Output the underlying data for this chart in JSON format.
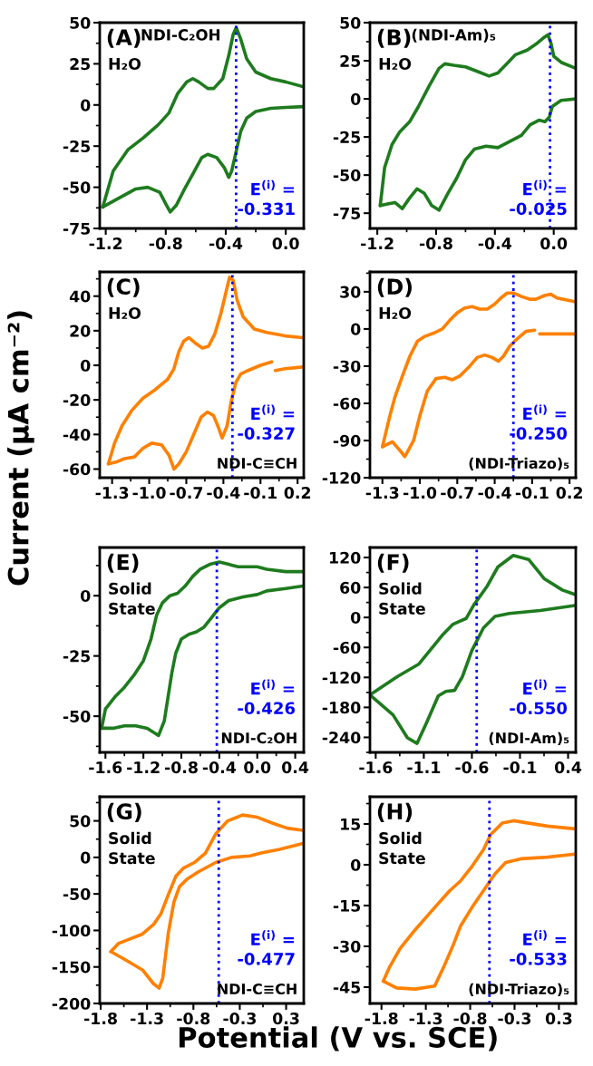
{
  "chart_data": [
    {
      "type": "line",
      "xlim": [
        -1.24,
        0.12
      ],
      "ylim": [
        -75,
        50
      ],
      "xticks": [
        -1.2,
        -0.8,
        -0.4,
        {
          "value": 0.0,
          "label": "0.0"
        }
      ],
      "yticks": [
        -75,
        -50,
        -25,
        0,
        25,
        50
      ],
      "series": [
        {
          "color": "#1e7b1e",
          "x": [
            -1.22,
            -1.15,
            -1.05,
            -0.95,
            -0.85,
            -0.78,
            -0.72,
            -0.66,
            -0.62,
            -0.58,
            -0.52,
            -0.48,
            -0.42,
            -0.38,
            -0.35,
            -0.33,
            -0.3,
            -0.26,
            -0.2,
            -0.1,
            0.0,
            0.12
          ],
          "values": [
            -62,
            -40,
            -27,
            -20,
            -12,
            -5,
            7,
            14,
            16,
            14,
            10,
            10,
            16,
            30,
            43,
            47,
            40,
            28,
            20,
            16,
            14,
            11
          ]
        },
        {
          "color": "#1e7b1e",
          "x": [
            0.12,
            0.0,
            -0.1,
            -0.2,
            -0.26,
            -0.3,
            -0.33,
            -0.36,
            -0.38,
            -0.41,
            -0.46,
            -0.52,
            -0.56,
            -0.62,
            -0.68,
            -0.73,
            -0.77,
            -0.8,
            -0.84,
            -0.92,
            -1.0,
            -1.08,
            -1.16,
            -1.22
          ],
          "values": [
            -1,
            -1.5,
            -2,
            -4,
            -8,
            -16,
            -28,
            -40,
            -44,
            -38,
            -32,
            -30,
            -32,
            -42,
            -52,
            -61,
            -65,
            -60,
            -53,
            -50,
            -51,
            -55,
            -59,
            -62
          ]
        }
      ],
      "annotations": [
        "(A)",
        "H₂O",
        "NDI-C₂OH"
      ],
      "ref_lines": [
        {
          "axis": "x",
          "value": -0.331,
          "label": "E$^{(i)}$ =\n-0.331",
          "color": "#0000ff",
          "line_style": "dotted"
        }
      ]
    },
    {
      "type": "line",
      "xlim": [
        -1.25,
        0.15
      ],
      "ylim": [
        -85,
        50
      ],
      "xticks": [
        -1.2,
        -0.8,
        -0.4,
        {
          "value": 0.0,
          "label": "0.0"
        }
      ],
      "yticks": [
        -75,
        -50,
        -25,
        0,
        25,
        50
      ],
      "series": [
        {
          "color": "#1e7b1e",
          "x": [
            -1.18,
            -1.15,
            -1.1,
            -1.05,
            -0.98,
            -0.92,
            -0.85,
            -0.78,
            -0.74,
            -0.68,
            -0.6,
            -0.52,
            -0.44,
            -0.38,
            -0.32,
            -0.26,
            -0.18,
            -0.12,
            -0.07,
            -0.04,
            -0.02,
            0.0,
            0.05,
            0.15
          ],
          "values": [
            -70,
            -45,
            -30,
            -22,
            -15,
            -5,
            8,
            20,
            23,
            22,
            21,
            18,
            15,
            17,
            23,
            29,
            32,
            36,
            40,
            42,
            37,
            28,
            24,
            20
          ]
        },
        {
          "color": "#1e7b1e",
          "x": [
            0.15,
            0.05,
            -0.01,
            -0.03,
            -0.06,
            -0.1,
            -0.16,
            -0.22,
            -0.3,
            -0.38,
            -0.46,
            -0.54,
            -0.6,
            -0.66,
            -0.72,
            -0.78,
            -0.83,
            -0.88,
            -0.93,
            -0.98,
            -1.03,
            -1.08,
            -1.13,
            -1.18
          ],
          "values": [
            0,
            -1,
            -5,
            -12,
            -15,
            -14,
            -17,
            -24,
            -28,
            -32,
            -31,
            -33,
            -40,
            -52,
            -62,
            -73,
            -70,
            -62,
            -59,
            -65,
            -72,
            -68,
            -69,
            -70
          ]
        }
      ],
      "annotations": [
        "(B)",
        "H₂O",
        "(NDI-Am)₅"
      ],
      "ref_lines": [
        {
          "axis": "x",
          "value": -0.025,
          "label": "E$^{(i)}$ =\n-0.025",
          "color": "#0000ff",
          "line_style": "dotted"
        }
      ]
    },
    {
      "type": "line",
      "xlim": [
        -1.4,
        0.25
      ],
      "ylim": [
        -65,
        54
      ],
      "xticks": [
        -1.3,
        {
          "value": -1.0,
          "label": "-1.0"
        },
        -0.7,
        -0.4,
        -0.1,
        0.2
      ],
      "yticks": [
        -60,
        -40,
        -20,
        0,
        20,
        40
      ],
      "ylabel": "Current (μA cm⁻²)",
      "series": [
        {
          "color": "#ff8000",
          "x": [
            -1.33,
            -1.28,
            -1.22,
            -1.14,
            -1.05,
            -0.95,
            -0.85,
            -0.8,
            -0.76,
            -0.72,
            -0.68,
            -0.63,
            -0.57,
            -0.52,
            -0.47,
            -0.42,
            -0.38,
            -0.35,
            -0.32,
            -0.29,
            -0.24,
            -0.15,
            -0.05,
            0.1,
            0.24
          ],
          "values": [
            -57,
            -45,
            -35,
            -26,
            -19,
            -14,
            -8,
            -2,
            8,
            14,
            16,
            13,
            10,
            11,
            18,
            30,
            42,
            51,
            49,
            38,
            28,
            21,
            19,
            17,
            16
          ]
        },
        {
          "color": "#ff8000",
          "x": [
            0.24,
            0.1,
            0.02,
            null,
            -0.01,
            -0.1,
            -0.2,
            -0.26,
            -0.3,
            -0.34,
            -0.37,
            -0.41,
            -0.44,
            -0.48,
            -0.53,
            -0.58,
            -0.64,
            -0.7,
            -0.76,
            -0.8,
            -0.84,
            -0.9,
            -0.98,
            -1.05,
            -1.12,
            -1.2,
            -1.27,
            -1.33
          ],
          "values": [
            -1,
            -2,
            -3,
            null,
            2,
            0,
            -3,
            -5,
            -10,
            -22,
            -35,
            -42,
            -36,
            -29,
            -27,
            -30,
            -40,
            -50,
            -57,
            -60,
            -52,
            -46,
            -45,
            -48,
            -53,
            -54,
            -56,
            -57
          ]
        }
      ],
      "annotations": [
        "(C)",
        "H₂O",
        "NDI-C≡CH"
      ],
      "ref_lines": [
        {
          "axis": "x",
          "value": -0.327,
          "label": "E$^{(i)}$ =\n-0.327",
          "color": "#0000ff",
          "line_style": "dotted"
        }
      ]
    },
    {
      "type": "line",
      "xlim": [
        -1.4,
        0.25
      ],
      "ylim": [
        -120,
        46
      ],
      "xticks": [
        -1.3,
        {
          "value": -1.0,
          "label": "-1.0"
        },
        -0.7,
        -0.4,
        -0.1,
        0.2
      ],
      "yticks": [
        -120,
        -90,
        -60,
        -30,
        0,
        30
      ],
      "series": [
        {
          "color": "#ff8000",
          "x": [
            -1.3,
            -1.24,
            -1.2,
            -1.14,
            -1.08,
            -1.02,
            -0.96,
            -0.88,
            -0.82,
            -0.76,
            -0.7,
            -0.64,
            -0.58,
            -0.52,
            -0.46,
            -0.4,
            -0.35,
            -0.3,
            -0.25,
            -0.18,
            -0.12,
            -0.07,
            0.0,
            0.05,
            0.1,
            0.24
          ],
          "values": [
            -95,
            -70,
            -55,
            -38,
            -22,
            -10,
            -6,
            -3,
            0,
            7,
            13,
            17,
            18,
            16,
            16,
            20,
            25,
            29,
            29,
            26,
            24,
            24,
            27,
            28,
            25,
            22
          ]
        },
        {
          "color": "#ff8000",
          "x": [
            0.24,
            0.1,
            -0.04,
            null,
            -0.08,
            -0.15,
            -0.22,
            -0.28,
            -0.33,
            -0.37,
            -0.42,
            -0.48,
            -0.54,
            -0.6,
            -0.68,
            -0.74,
            -0.8,
            -0.87,
            -0.94,
            -1.0,
            -1.05,
            -1.12,
            -1.16,
            -1.22,
            -1.26,
            -1.3
          ],
          "values": [
            -4,
            -4,
            -4,
            null,
            -1,
            -2,
            -8,
            -14,
            -22,
            -26,
            -23,
            -21,
            -23,
            -30,
            -38,
            -41,
            -39,
            -40,
            -50,
            -70,
            -90,
            -103,
            -98,
            -91,
            -93,
            -95
          ]
        }
      ],
      "annotations": [
        "(D)",
        "H₂O",
        "(NDI-Triazo)₅"
      ],
      "ref_lines": [
        {
          "axis": "x",
          "value": -0.25,
          "label": "E$^{(i)}$ =\n-0.250",
          "color": "#0000ff",
          "line_style": "dotted"
        }
      ]
    },
    {
      "type": "line",
      "xlim": [
        -1.66,
        0.49
      ],
      "ylim": [
        -65,
        20
      ],
      "xticks": [
        -1.6,
        -1.2,
        -0.8,
        -0.4,
        {
          "value": 0.0,
          "label": "0.0"
        },
        0.4
      ],
      "yticks": [
        -50,
        -25,
        0
      ],
      "series": [
        {
          "color": "#1e7b1e",
          "x": [
            -1.64,
            -1.6,
            -1.5,
            -1.4,
            -1.3,
            -1.2,
            -1.12,
            -1.06,
            -1.0,
            -0.92,
            -0.84,
            -0.76,
            -0.68,
            -0.6,
            -0.5,
            -0.4,
            -0.3,
            -0.2,
            -0.1,
            0.0,
            0.1,
            0.3,
            0.48
          ],
          "values": [
            -55,
            -47,
            -42,
            -38,
            -33,
            -27,
            -18,
            -8,
            -3,
            0,
            1,
            4,
            8,
            11,
            13,
            14,
            13,
            12,
            12,
            12,
            11,
            10,
            10
          ]
        },
        {
          "color": "#1e7b1e",
          "x": [
            0.48,
            0.3,
            0.1,
            0.0,
            -0.15,
            -0.3,
            -0.4,
            -0.48,
            -0.56,
            -0.64,
            -0.72,
            -0.8,
            -0.86,
            -0.9,
            -0.94,
            -0.98,
            -1.04,
            -1.08,
            -1.16,
            -1.28,
            -1.4,
            -1.52,
            -1.64
          ],
          "values": [
            4,
            3,
            2,
            0.5,
            -0.5,
            -2,
            -5,
            -9,
            -13,
            -15,
            -16,
            -18,
            -24,
            -32,
            -42,
            -52,
            -58,
            -57,
            -55,
            -54,
            -54,
            -55,
            -55
          ]
        }
      ],
      "annotations": [
        "(E)",
        "Solid\nState",
        "NDI-C₂OH"
      ],
      "ref_lines": [
        {
          "axis": "x",
          "value": -0.426,
          "label": "E$^{(i)}$ =\n-0.426",
          "color": "#0000ff",
          "line_style": "dotted"
        }
      ]
    },
    {
      "type": "line",
      "xlim": [
        -1.66,
        0.48
      ],
      "ylim": [
        -270,
        140
      ],
      "xticks": [
        -1.6,
        -1.1,
        -0.6,
        -0.1,
        0.4
      ],
      "yticks": [
        -240,
        -180,
        -120,
        -60,
        0,
        60,
        120
      ],
      "series": [
        {
          "color": "#1e7b1e",
          "x": [
            -1.66,
            -1.38,
            -1.15,
            -0.91,
            -0.8,
            -0.66,
            -0.58,
            -0.44,
            -0.33,
            -0.17,
            -0.01,
            0.15,
            0.34,
            0.47
          ],
          "values": [
            -155,
            -119,
            -93,
            -36,
            -14,
            -2,
            25,
            63,
            101,
            124,
            116,
            78,
            55,
            46
          ]
        },
        {
          "color": "#1e7b1e",
          "x": [
            0.47,
            0.11,
            -0.21,
            -0.36,
            -0.48,
            -0.6,
            -0.7,
            -0.78,
            -0.87,
            -0.95,
            -1.07,
            -1.17,
            -1.27,
            -1.42,
            -1.66
          ],
          "values": [
            24,
            14,
            8,
            2,
            -21,
            -66,
            -119,
            -146,
            -148,
            -157,
            -210,
            -252,
            -241,
            -195,
            -155
          ]
        }
      ],
      "annotations": [
        "(F)",
        "Solid\nState",
        "(NDI-Am)₅"
      ],
      "ref_lines": [
        {
          "axis": "x",
          "value": -0.55,
          "label": "E$^{(i)}$ =\n-0.550",
          "color": "#0000ff",
          "line_style": "dotted"
        }
      ]
    },
    {
      "type": "line",
      "xlim": [
        -1.76,
        0.44
      ],
      "ylim": [
        -200,
        83
      ],
      "xticks": [
        {
          "value": -1.75,
          "label": "-1.8"
        },
        {
          "value": -1.25,
          "label": "-1.3"
        },
        {
          "value": -0.75,
          "label": "-0.8"
        },
        {
          "value": -0.25,
          "label": "-0.3"
        },
        {
          "value": 0.25,
          "label": "0.3"
        }
      ],
      "yticks": [
        -200,
        -150,
        -100,
        -50,
        0,
        50
      ],
      "xlabel": "Potential (V vs. SCE)",
      "series": [
        {
          "color": "#ff8000",
          "x": [
            -1.64,
            -1.56,
            -1.46,
            -1.3,
            -1.18,
            -1.1,
            -1.02,
            -0.94,
            -0.86,
            -0.74,
            -0.62,
            -0.51,
            -0.38,
            -0.22,
            -0.06,
            0.1,
            0.26,
            0.43
          ],
          "values": [
            -129,
            -118,
            -113,
            -105,
            -92,
            -77,
            -51,
            -26,
            -15,
            -7,
            6,
            32,
            50,
            58,
            55,
            47,
            40,
            37
          ]
        },
        {
          "color": "#ff8000",
          "x": [
            0.43,
            0.18,
            -0.02,
            -0.14,
            -0.34,
            -0.51,
            -0.7,
            -0.82,
            -0.9,
            -0.96,
            -1.02,
            -1.08,
            -1.12,
            -1.18,
            -1.3,
            -1.46,
            -1.64
          ],
          "values": [
            19,
            11,
            6,
            2,
            0,
            -7,
            -20,
            -30,
            -40,
            -61,
            -103,
            -165,
            -179,
            -173,
            -154,
            -142,
            -129
          ]
        }
      ],
      "annotations": [
        "(G)",
        "Solid\nState",
        "NDI-C≡CH"
      ],
      "ref_lines": [
        {
          "axis": "x",
          "value": -0.477,
          "label": "E$^{(i)}$ =\n-0.477",
          "color": "#0000ff",
          "line_style": "dotted"
        }
      ]
    },
    {
      "type": "line",
      "xlim": [
        -1.88,
        0.44
      ],
      "ylim": [
        -51,
        25
      ],
      "xticks": [
        {
          "value": -1.75,
          "label": "-1.8"
        },
        {
          "value": -1.25,
          "label": "-1.3"
        },
        {
          "value": -0.75,
          "label": "-0.8"
        },
        {
          "value": -0.25,
          "label": "-0.3"
        },
        {
          "value": 0.25,
          "label": "0.3"
        }
      ],
      "yticks": [
        -45,
        -30,
        -15,
        0,
        15
      ],
      "series": [
        {
          "color": "#ff8000",
          "x": [
            -1.73,
            -1.66,
            -1.54,
            -1.37,
            -1.15,
            -0.98,
            -0.86,
            -0.73,
            -0.6,
            -0.52,
            -0.39,
            -0.26,
            -0.09,
            0.12,
            0.43
          ],
          "values": [
            -42.8,
            -37.7,
            -30.8,
            -23.9,
            -15.7,
            -9.5,
            -6,
            -0.6,
            5.6,
            11.1,
            15.3,
            16.2,
            15.3,
            14.2,
            13.2
          ]
        },
        {
          "color": "#ff8000",
          "x": [
            0.43,
            0.12,
            -0.18,
            -0.35,
            -0.47,
            -0.6,
            -0.73,
            -0.86,
            -0.94,
            -1.05,
            -1.15,
            -1.37,
            -1.58,
            -1.73
          ],
          "values": [
            3.9,
            2.8,
            2.2,
            0.8,
            -3.3,
            -9.5,
            -15.7,
            -22.6,
            -29.4,
            -37.7,
            -44.6,
            -45.7,
            -45.3,
            -42.8
          ]
        }
      ],
      "annotations": [
        "(H)",
        "Solid\nState",
        "(NDI-Triazo)₅"
      ],
      "ref_lines": [
        {
          "axis": "x",
          "value": -0.533,
          "label": "E$^{(i)}$ =\n-0.533",
          "color": "#0000ff",
          "line_style": "dotted"
        }
      ]
    }
  ]
}
